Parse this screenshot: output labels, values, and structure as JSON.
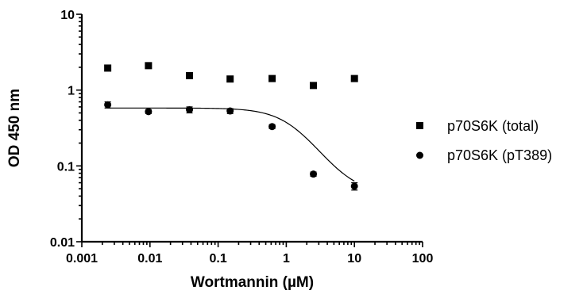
{
  "chart_data": {
    "type": "scatter",
    "xlabel": "Wortmannin (µM)",
    "ylabel": "OD 450 nm",
    "xscale": "log",
    "yscale": "log",
    "xlim": [
      0.001,
      100
    ],
    "ylim": [
      0.01,
      10
    ],
    "x_ticks": [
      0.001,
      0.01,
      0.1,
      1,
      10,
      100
    ],
    "x_tick_labels": [
      "0.001",
      "0.01",
      "0.1",
      "1",
      "10",
      "100"
    ],
    "y_ticks": [
      0.01,
      0.1,
      1,
      10
    ],
    "y_tick_labels": [
      "0.01",
      "0.1",
      "1",
      "10"
    ],
    "legend_position": "right",
    "series": [
      {
        "name": "p70S6K (total)",
        "marker": "square",
        "x": [
          0.0024,
          0.0095,
          0.038,
          0.15,
          0.62,
          2.5,
          10
        ],
        "y": [
          1.95,
          2.1,
          1.55,
          1.4,
          1.42,
          1.15,
          1.42
        ],
        "fit": false
      },
      {
        "name": "p70S6K (pT389)",
        "marker": "circle",
        "x": [
          0.0024,
          0.0095,
          0.038,
          0.15,
          0.62,
          2.5,
          10
        ],
        "y": [
          0.64,
          0.52,
          0.55,
          0.53,
          0.33,
          0.078,
          0.054
        ],
        "y_err": [
          0.06,
          0.03,
          0.05,
          0.04,
          0.02,
          0.005,
          0.006
        ],
        "fit": {
          "model": "sigmoidal dose-response",
          "top": 0.58,
          "bottom": 0.042,
          "ic50": 1.35,
          "hill": 1.6,
          "x_range": [
            0.0024,
            10
          ]
        }
      }
    ]
  }
}
